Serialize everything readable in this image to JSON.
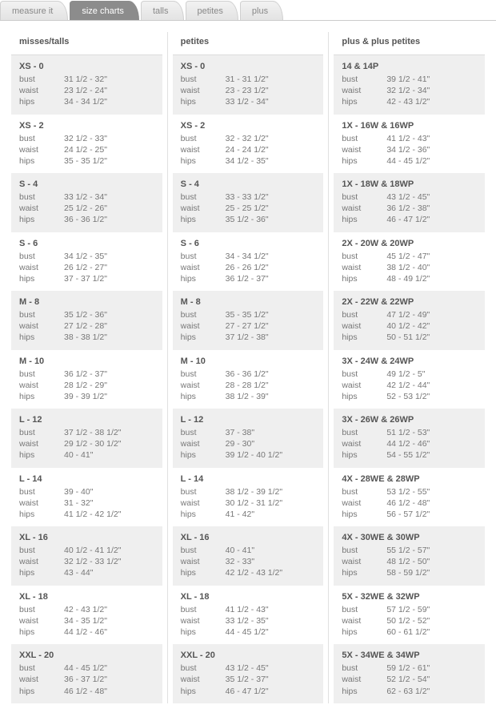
{
  "tabs": [
    {
      "label": "measure it",
      "active": false
    },
    {
      "label": "size charts",
      "active": true
    },
    {
      "label": "talls",
      "active": false
    },
    {
      "label": "petites",
      "active": false
    },
    {
      "label": "plus",
      "active": false
    }
  ],
  "columns": [
    {
      "header": "misses/talls",
      "blocks": [
        {
          "title": "XS - 0",
          "rows": [
            [
              "bust",
              "31 1/2 - 32\""
            ],
            [
              "waist",
              "23 1/2 - 24\""
            ],
            [
              "hips",
              "34 - 34 1/2\""
            ]
          ]
        },
        {
          "title": "XS - 2",
          "rows": [
            [
              "bust",
              "32 1/2 - 33\""
            ],
            [
              "waist",
              "24 1/2 - 25\""
            ],
            [
              "hips",
              "35 - 35 1/2\""
            ]
          ]
        },
        {
          "title": "S - 4",
          "rows": [
            [
              "bust",
              "33 1/2 - 34\""
            ],
            [
              "waist",
              "25 1/2 - 26\""
            ],
            [
              "hips",
              "36 - 36 1/2\""
            ]
          ]
        },
        {
          "title": "S - 6",
          "rows": [
            [
              "bust",
              "34 1/2 - 35\""
            ],
            [
              "waist",
              "26 1/2 - 27\""
            ],
            [
              "hips",
              "37 - 37 1/2\""
            ]
          ]
        },
        {
          "title": "M - 8",
          "rows": [
            [
              "bust",
              "35 1/2 - 36\""
            ],
            [
              "waist",
              "27 1/2 - 28\""
            ],
            [
              "hips",
              "38 - 38 1/2\""
            ]
          ]
        },
        {
          "title": "M - 10",
          "rows": [
            [
              "bust",
              "36 1/2 - 37\""
            ],
            [
              "waist",
              "28 1/2 - 29\""
            ],
            [
              "hips",
              "39 - 39 1/2\""
            ]
          ]
        },
        {
          "title": "L - 12",
          "rows": [
            [
              "bust",
              "37 1/2 - 38 1/2\""
            ],
            [
              "waist",
              "29 1/2 - 30 1/2\""
            ],
            [
              "hips",
              "40 - 41\""
            ]
          ]
        },
        {
          "title": "L - 14",
          "rows": [
            [
              "bust",
              "39 - 40\""
            ],
            [
              "waist",
              "31 - 32\""
            ],
            [
              "hips",
              "41 1/2 - 42 1/2\""
            ]
          ]
        },
        {
          "title": "XL - 16",
          "rows": [
            [
              "bust",
              "40 1/2 - 41 1/2\""
            ],
            [
              "waist",
              "32 1/2 - 33 1/2\""
            ],
            [
              "hips",
              "43 - 44\""
            ]
          ]
        },
        {
          "title": "XL - 18",
          "rows": [
            [
              "bust",
              "42 - 43 1/2\""
            ],
            [
              "waist",
              "34 - 35 1/2\""
            ],
            [
              "hips",
              "44 1/2 - 46\""
            ]
          ]
        },
        {
          "title": "XXL - 20",
          "rows": [
            [
              "bust",
              "44 - 45 1/2\""
            ],
            [
              "waist",
              "36 - 37 1/2\""
            ],
            [
              "hips",
              "46 1/2 - 48\""
            ]
          ]
        }
      ]
    },
    {
      "header": "petites",
      "blocks": [
        {
          "title": "XS - 0",
          "rows": [
            [
              "bust",
              "31 - 31 1/2\""
            ],
            [
              "waist",
              "23 - 23 1/2\""
            ],
            [
              "hips",
              "33 1/2 - 34\""
            ]
          ]
        },
        {
          "title": "XS - 2",
          "rows": [
            [
              "bust",
              "32 - 32 1/2\""
            ],
            [
              "waist",
              "24 - 24 1/2\""
            ],
            [
              "hips",
              "34 1/2 - 35\""
            ]
          ]
        },
        {
          "title": "S - 4",
          "rows": [
            [
              "bust",
              "33 - 33 1/2\""
            ],
            [
              "waist",
              "25 - 25 1/2\""
            ],
            [
              "hips",
              "35 1/2 - 36\""
            ]
          ]
        },
        {
          "title": "S - 6",
          "rows": [
            [
              "bust",
              "34 - 34 1/2\""
            ],
            [
              "waist",
              "26 - 26 1/2\""
            ],
            [
              "hips",
              "36 1/2 - 37\""
            ]
          ]
        },
        {
          "title": "M - 8",
          "rows": [
            [
              "bust",
              "35 - 35 1/2\""
            ],
            [
              "waist",
              "27 - 27 1/2\""
            ],
            [
              "hips",
              "37 1/2 - 38\""
            ]
          ]
        },
        {
          "title": "M - 10",
          "rows": [
            [
              "bust",
              "36 - 36 1/2\""
            ],
            [
              "waist",
              "28 - 28 1/2\""
            ],
            [
              "hips",
              "38 1/2 - 39\""
            ]
          ]
        },
        {
          "title": "L - 12",
          "rows": [
            [
              "bust",
              "37 - 38\""
            ],
            [
              "waist",
              "29 - 30\""
            ],
            [
              "hips",
              "39 1/2 - 40 1/2\""
            ]
          ]
        },
        {
          "title": "L - 14",
          "rows": [
            [
              "bust",
              "38 1/2 - 39 1/2\""
            ],
            [
              "waist",
              "30 1/2 - 31 1/2\""
            ],
            [
              "hips",
              "41 - 42\""
            ]
          ]
        },
        {
          "title": "XL - 16",
          "rows": [
            [
              "bust",
              "40 - 41\""
            ],
            [
              "waist",
              "32 - 33\""
            ],
            [
              "hips",
              "42 1/2 - 43 1/2\""
            ]
          ]
        },
        {
          "title": "XL - 18",
          "rows": [
            [
              "bust",
              "41 1/2 - 43\""
            ],
            [
              "waist",
              "33 1/2 - 35\""
            ],
            [
              "hips",
              "44 - 45 1/2\""
            ]
          ]
        },
        {
          "title": "XXL - 20",
          "rows": [
            [
              "bust",
              "43 1/2 - 45\""
            ],
            [
              "waist",
              "35 1/2 - 37\""
            ],
            [
              "hips",
              "46 - 47 1/2\""
            ]
          ]
        }
      ]
    },
    {
      "header": "plus & plus petites",
      "blocks": [
        {
          "title": "14 & 14P",
          "rows": [
            [
              "bust",
              "39 1/2 - 41\""
            ],
            [
              "waist",
              "32 1/2 - 34\""
            ],
            [
              "hips",
              "42 - 43 1/2\""
            ]
          ]
        },
        {
          "title": "1X - 16W & 16WP",
          "rows": [
            [
              "bust",
              "41 1/2 - 43\""
            ],
            [
              "waist",
              "34 1/2 - 36\""
            ],
            [
              "hips",
              "44 - 45 1/2\""
            ]
          ]
        },
        {
          "title": "1X - 18W & 18WP",
          "rows": [
            [
              "bust",
              "43 1/2 - 45\""
            ],
            [
              "waist",
              "36 1/2 - 38\""
            ],
            [
              "hips",
              "46 - 47 1/2\""
            ]
          ]
        },
        {
          "title": "2X - 20W & 20WP",
          "rows": [
            [
              "bust",
              "45 1/2 - 47\""
            ],
            [
              "waist",
              "38 1/2 - 40\""
            ],
            [
              "hips",
              "48 - 49 1/2\""
            ]
          ]
        },
        {
          "title": "2X - 22W & 22WP",
          "rows": [
            [
              "bust",
              "47 1/2 - 49\""
            ],
            [
              "waist",
              "40 1/2 - 42\""
            ],
            [
              "hips",
              "50 - 51 1/2\""
            ]
          ]
        },
        {
          "title": "3X - 24W & 24WP",
          "rows": [
            [
              "bust",
              "49 1/2 - 5\""
            ],
            [
              "waist",
              "42 1/2 - 44\""
            ],
            [
              "hips",
              "52 - 53 1/2\""
            ]
          ]
        },
        {
          "title": "3X - 26W & 26WP",
          "rows": [
            [
              "bust",
              "51 1/2 - 53\""
            ],
            [
              "waist",
              "44 1/2 - 46\""
            ],
            [
              "hips",
              "54 - 55 1/2\""
            ]
          ]
        },
        {
          "title": "4X - 28WE & 28WP",
          "rows": [
            [
              "bust",
              "53 1/2 - 55\""
            ],
            [
              "waist",
              "46 1/2 - 48\""
            ],
            [
              "hips",
              "56 - 57 1/2\""
            ]
          ]
        },
        {
          "title": "4X - 30WE & 30WP",
          "rows": [
            [
              "bust",
              "55 1/2 - 57\""
            ],
            [
              "waist",
              "48 1/2 - 50\""
            ],
            [
              "hips",
              "58 - 59 1/2\""
            ]
          ]
        },
        {
          "title": "5X - 32WE & 32WP",
          "rows": [
            [
              "bust",
              "57 1/2 - 59\""
            ],
            [
              "waist",
              "50 1/2 - 52\""
            ],
            [
              "hips",
              "60 - 61 1/2\""
            ]
          ]
        },
        {
          "title": "5X - 34WE & 34WP",
          "rows": [
            [
              "bust",
              "59 1/2 - 61\""
            ],
            [
              "waist",
              "52 1/2 - 54\""
            ],
            [
              "hips",
              "62 - 63 1/2\""
            ]
          ]
        }
      ]
    }
  ]
}
